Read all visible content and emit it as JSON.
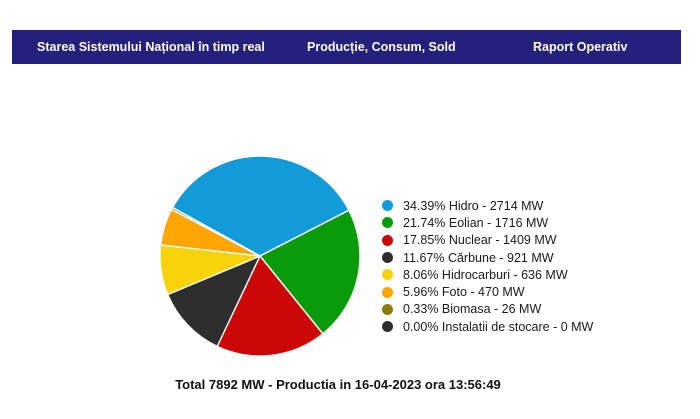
{
  "nav": {
    "background_color": "#24217D",
    "items": [
      {
        "label": "Starea Sistemului Național în timp real"
      },
      {
        "label": "Producție, Consum, Sold"
      },
      {
        "label": "Raport Operativ"
      }
    ]
  },
  "chart_data": {
    "type": "pie",
    "unit": "MW",
    "total_mw": 7892,
    "start_angle_deg": 151,
    "direction": "clockwise",
    "legend_position": "right",
    "slice_border_color": "#ffffff",
    "slices": [
      {
        "name": "Hidro",
        "value_mw": 2714,
        "pct": 34.39,
        "color": "#119BD8",
        "legend": "34.39% Hidro - 2714 MW"
      },
      {
        "name": "Eolian",
        "value_mw": 1716,
        "pct": 21.74,
        "color": "#0A9B0A",
        "legend": "21.74% Eolian - 1716 MW"
      },
      {
        "name": "Nuclear",
        "value_mw": 1409,
        "pct": 17.85,
        "color": "#CB0707",
        "legend": "17.85% Nuclear - 1409 MW"
      },
      {
        "name": "Cărbune",
        "value_mw": 921,
        "pct": 11.67,
        "color": "#2E2E2E",
        "legend": "11.67% Cărbune - 921 MW"
      },
      {
        "name": "Hidrocarburi",
        "value_mw": 636,
        "pct": 8.06,
        "color": "#F8D20A",
        "legend": "8.06% Hidrocarburi - 636 MW"
      },
      {
        "name": "Foto",
        "value_mw": 470,
        "pct": 5.96,
        "color": "#FFA605",
        "legend": "5.96% Foto - 470 MW"
      },
      {
        "name": "Biomasa",
        "value_mw": 26,
        "pct": 0.33,
        "color": "#8E7C10",
        "legend": "0.33% Biomasa - 26 MW"
      },
      {
        "name": "Instalatii de stocare",
        "value_mw": 0,
        "pct": 0.0,
        "color": "#2E2E2E",
        "legend": "0.00% Instalatii de stocare - 0 MW"
      }
    ]
  },
  "footer": {
    "summary": "Total 7892 MW - Productia in 16-04-2023 ora 13:56:49"
  }
}
